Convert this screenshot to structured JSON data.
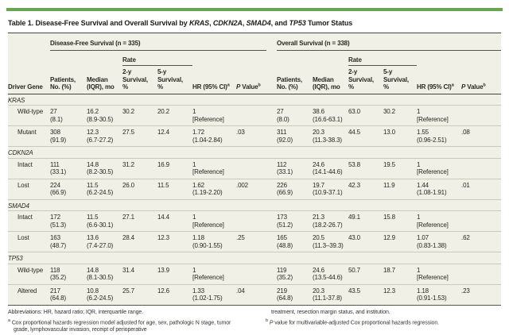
{
  "title": {
    "segments": [
      {
        "text": "Table 1. Disease-Free Survival and Overall Survival by ",
        "italic": false
      },
      {
        "text": "KRAS",
        "italic": true
      },
      {
        "text": ", ",
        "italic": false
      },
      {
        "text": "CDKN2A",
        "italic": true
      },
      {
        "text": ", ",
        "italic": false
      },
      {
        "text": "SMAD4",
        "italic": true
      },
      {
        "text": ", and ",
        "italic": false
      },
      {
        "text": "TP53",
        "italic": true
      },
      {
        "text": " Tumor Status",
        "italic": false
      }
    ]
  },
  "header": {
    "driver_gene": "Driver Gene",
    "dfs_group": "Disease-Free Survival (n = 335)",
    "os_group": "Overall Survival (n = 338)",
    "rate": "Rate",
    "col_patients": "Patients, No. (%)",
    "col_median": "Median (IQR), mo",
    "col_2y": "2-y Survival, %",
    "col_5y": "5-y Survival, %",
    "col_hr": "HR (95% CI)",
    "col_hr_sup": "a",
    "col_p_italic": "P",
    "col_p_rest": " Value",
    "col_p_sup": "b"
  },
  "sections": [
    {
      "gene": "KRAS",
      "rows": [
        {
          "label": "Wild-type",
          "dfs": {
            "patients": [
              "27",
              "(8.1)"
            ],
            "median": [
              "16.2",
              "(8.9-30.5)"
            ],
            "y2": "30.2",
            "y5": "20.2",
            "hr": [
              "1",
              "[Reference]"
            ],
            "p": ""
          },
          "os": {
            "patients": [
              "27",
              "(8.0)"
            ],
            "median": [
              "38.6",
              "(16.6-63.1)"
            ],
            "y2": "63.0",
            "y5": "30.2",
            "hr": [
              "1",
              "[Reference]"
            ],
            "p": ""
          }
        },
        {
          "label": "Mutant",
          "dfs": {
            "patients": [
              "308",
              "(91.9)"
            ],
            "median": [
              "12.3",
              "(6.7-27.2)"
            ],
            "y2": "27.5",
            "y5": "12.4",
            "hr": [
              "1.72",
              "(1.04-2.84)"
            ],
            "p": ".03"
          },
          "os": {
            "patients": [
              "311",
              "(92.0)"
            ],
            "median": [
              "20.3",
              "(11.3-38.3)"
            ],
            "y2": "44.5",
            "y5": "13.0",
            "hr": [
              "1.55",
              "(0.96-2.51)"
            ],
            "p": ".08"
          }
        }
      ]
    },
    {
      "gene": "CDKN2A",
      "rows": [
        {
          "label": "Intact",
          "dfs": {
            "patients": [
              "111",
              "(33.1)"
            ],
            "median": [
              "14.8",
              "(8.2-30.5)"
            ],
            "y2": "31.2",
            "y5": "16.9",
            "hr": [
              "1",
              "[Reference]"
            ],
            "p": ""
          },
          "os": {
            "patients": [
              "112",
              "(33.1)"
            ],
            "median": [
              "24.6",
              "(14.1-44.6)"
            ],
            "y2": "53.8",
            "y5": "19.5",
            "hr": [
              "1",
              "[Reference]"
            ],
            "p": ""
          }
        },
        {
          "label": "Lost",
          "dfs": {
            "patients": [
              "224",
              "(66.9)"
            ],
            "median": [
              "11.5",
              "(6.2-24.5)"
            ],
            "y2": "26.0",
            "y5": "11.5",
            "hr": [
              "1.62",
              "(1.19-2.20)"
            ],
            "p": ".002"
          },
          "os": {
            "patients": [
              "226",
              "(66.9)"
            ],
            "median": [
              "19.7",
              "(10.9-37.1)"
            ],
            "y2": "42.3",
            "y5": "11.9",
            "hr": [
              "1.44",
              "(1.08-1.91)"
            ],
            "p": ".01"
          }
        }
      ]
    },
    {
      "gene": "SMAD4",
      "rows": [
        {
          "label": "Intact",
          "dfs": {
            "patients": [
              "172",
              "(51.3)"
            ],
            "median": [
              "11.5",
              "(6.6-30.1)"
            ],
            "y2": "27.1",
            "y5": "14.4",
            "hr": [
              "1",
              "[Reference]"
            ],
            "p": ""
          },
          "os": {
            "patients": [
              "173",
              "(51.2)"
            ],
            "median": [
              "21.3",
              "(18.2-26.7)"
            ],
            "y2": "49.1",
            "y5": "15.8",
            "hr": [
              "1",
              "[Reference]"
            ],
            "p": ""
          }
        },
        {
          "label": "Lost",
          "dfs": {
            "patients": [
              "163",
              "(48.7)"
            ],
            "median": [
              "13.6",
              "(7.4-27.0)"
            ],
            "y2": "28.4",
            "y5": "12.3",
            "hr": [
              "1.18",
              "(0.90-1.55)"
            ],
            "p": ".25"
          },
          "os": {
            "patients": [
              "165",
              "(48.8)"
            ],
            "median": [
              "20.5",
              "(11.3–39.3)"
            ],
            "y2": "43.0",
            "y5": "12.9",
            "hr": [
              "1.07",
              "(0.83-1.38)"
            ],
            "p": ".62"
          }
        }
      ]
    },
    {
      "gene": "TP53",
      "rows": [
        {
          "label": "Wild-type",
          "dfs": {
            "patients": [
              "118",
              "(35.2)"
            ],
            "median": [
              "14.8",
              "(8.1-30.5)"
            ],
            "y2": "31.4",
            "y5": "13.9",
            "hr": [
              "1",
              "[Reference]"
            ],
            "p": ""
          },
          "os": {
            "patients": [
              "119",
              "(35.2)"
            ],
            "median": [
              "24.6",
              "(13.5-44.6)"
            ],
            "y2": "50.7",
            "y5": "18.7",
            "hr": [
              "1",
              "[Reference]"
            ],
            "p": ""
          }
        },
        {
          "label": "Altered",
          "dfs": {
            "patients": [
              "217",
              "(64.8)"
            ],
            "median": [
              "10.8",
              "(6.2-24.5)"
            ],
            "y2": "25.7",
            "y5": "12.6",
            "hr": [
              "1.33",
              "(1.02-1.75)"
            ],
            "p": ".04"
          },
          "os": {
            "patients": [
              "219",
              "(64.8)"
            ],
            "median": [
              "20.3",
              "(11.1-37.8)"
            ],
            "y2": "43.5",
            "y5": "12.3",
            "hr": [
              "1.18",
              "(0.91-1.53)"
            ],
            "p": ".23"
          }
        }
      ]
    }
  ],
  "footnotes": {
    "abbreviations": "Abbreviations: HR, hazard ratio; IQR, interquartile range.",
    "a_marker": "a",
    "a_text": "Cox proportional hazards regression model adjusted for age, sex, pathologic N stage, tumor grade, lymphovascular invasion, receipt of perioperative",
    "right_continuation": "treatment, resection margin status, and institution.",
    "b_marker": "b",
    "b_lead_italic": "P",
    "b_text": " value for multivariable-adjusted Cox proportional hazards regression."
  },
  "colors": {
    "accent_green": "#66a64e",
    "table_background": "#f1f0e6",
    "rule_dark": "#46453d",
    "row_line": "#ccc9ba"
  }
}
